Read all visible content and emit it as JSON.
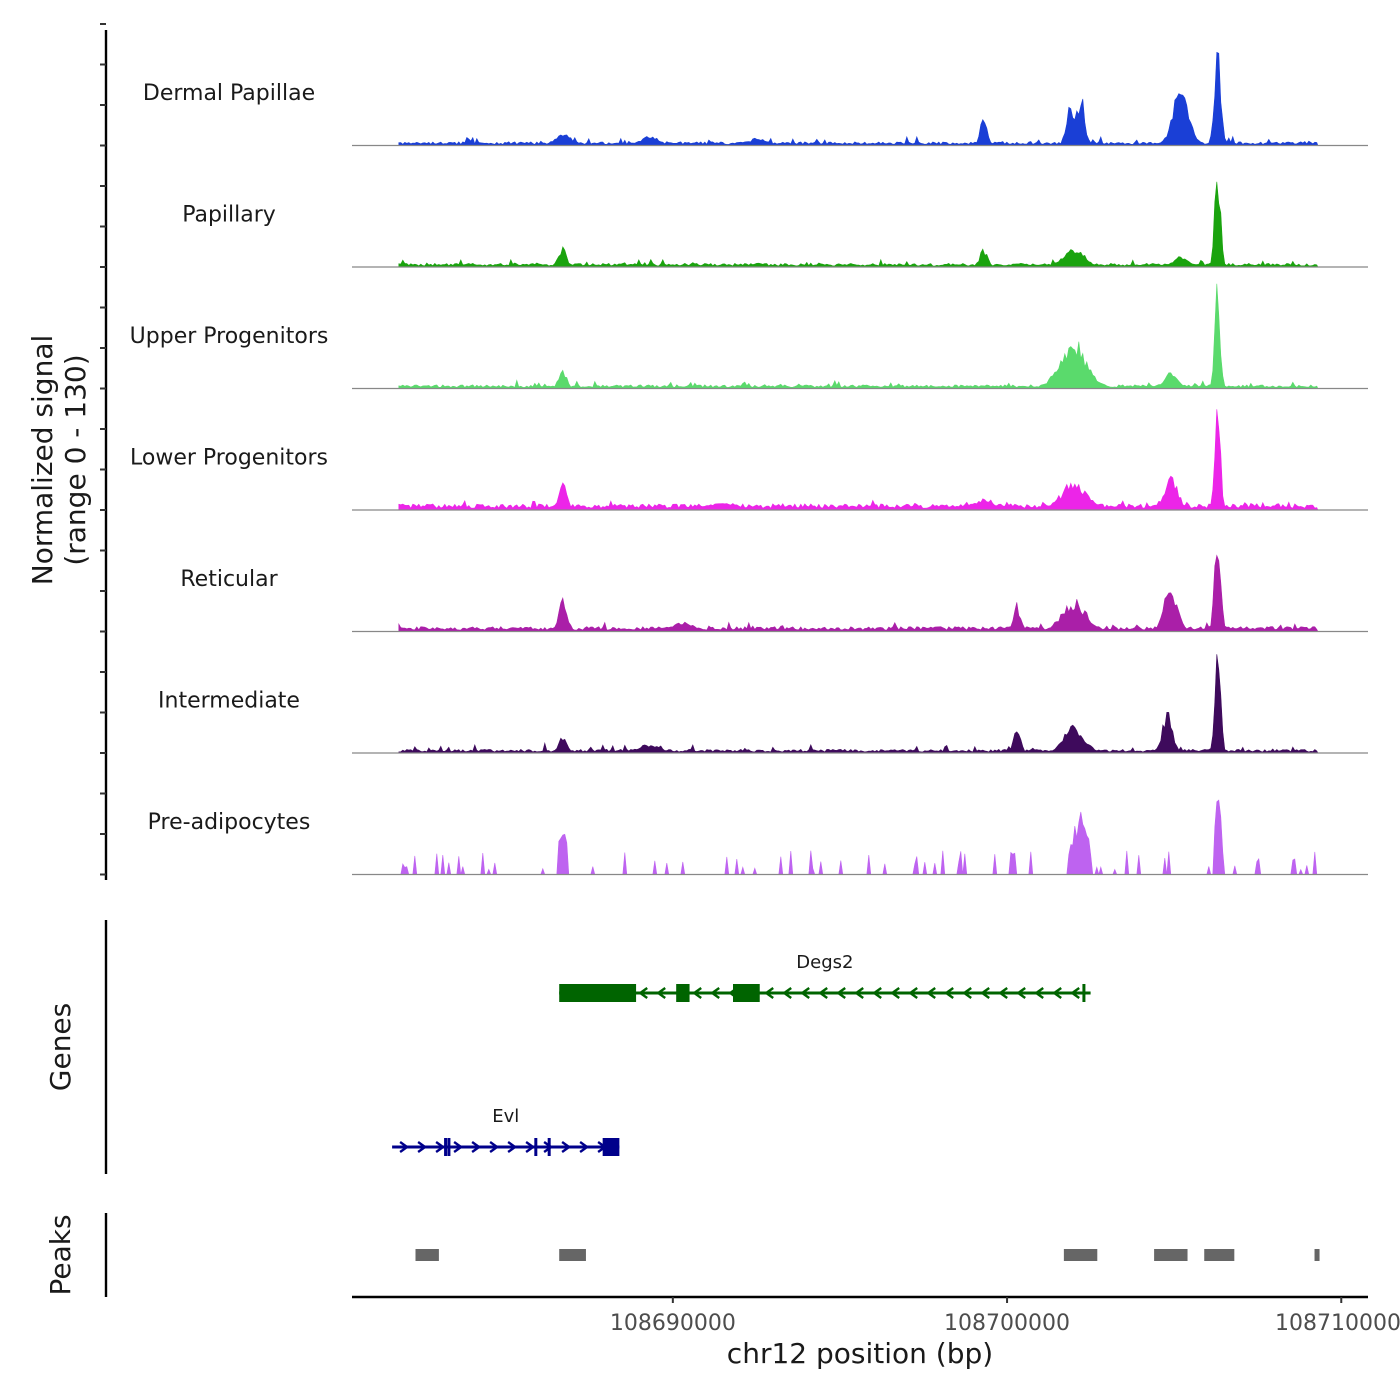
{
  "chart_data": {
    "type": "area",
    "title": "",
    "y_axis_title": [
      "Normalized signal",
      "(range 0 - 130)"
    ],
    "ylim": [
      0,
      130
    ],
    "xlabel": "chr12 position (bp)",
    "xlim": [
      108680400,
      108710800
    ],
    "x_ticks": [
      108690000,
      108700000,
      108710000
    ],
    "x_tick_labels": [
      "108690000",
      "108700000",
      "108710000"
    ],
    "signal_range": [
      108681800,
      108709300
    ],
    "colors": {
      "Dermal Papillae": "#1a3fd6",
      "Papillary": "#1aa30e",
      "Upper Progenitors": "#5ada6c",
      "Lower Progenitors": "#ec25e8",
      "Reticular": "#aa1fa8",
      "Intermediate": "#3e0a5c",
      "Pre-adipocytes": "#be63f0",
      "peaks": "#666666",
      "gene_minus": "#006400",
      "gene_plus": "#00008b"
    },
    "series": [
      {
        "name": "Dermal Papillae",
        "base": 3,
        "noise": 4,
        "sparse": false,
        "peaks": [
          [
            108686700,
            12,
            220
          ],
          [
            108689300,
            8,
            260
          ],
          [
            108692500,
            6,
            300
          ],
          [
            108699300,
            30,
            90
          ],
          [
            108701900,
            45,
            110
          ],
          [
            108702200,
            50,
            120
          ],
          [
            108705200,
            55,
            240
          ],
          [
            108706300,
            110,
            90
          ]
        ]
      },
      {
        "name": "Papillary",
        "base": 3,
        "noise": 3,
        "sparse": false,
        "peaks": [
          [
            108686700,
            18,
            110
          ],
          [
            108699300,
            18,
            110
          ],
          [
            108702000,
            18,
            300
          ],
          [
            108705200,
            10,
            200
          ],
          [
            108706300,
            105,
            80
          ]
        ]
      },
      {
        "name": "Upper Progenitors",
        "base": 3,
        "noise": 3,
        "sparse": false,
        "peaks": [
          [
            108686700,
            20,
            110
          ],
          [
            108702000,
            45,
            400
          ],
          [
            108704900,
            15,
            200
          ],
          [
            108706300,
            100,
            80
          ]
        ]
      },
      {
        "name": "Lower Progenitors",
        "base": 5,
        "noise": 3,
        "sparse": false,
        "peaks": [
          [
            108686700,
            25,
            120
          ],
          [
            108691500,
            6,
            500
          ],
          [
            108699300,
            10,
            300
          ],
          [
            108702000,
            28,
            350
          ],
          [
            108704900,
            32,
            200
          ],
          [
            108706300,
            105,
            80
          ]
        ]
      },
      {
        "name": "Reticular",
        "base": 4,
        "noise": 4,
        "sparse": false,
        "peaks": [
          [
            108686700,
            30,
            120
          ],
          [
            108690300,
            8,
            300
          ],
          [
            108700300,
            25,
            100
          ],
          [
            108702000,
            30,
            350
          ],
          [
            108704900,
            45,
            200
          ],
          [
            108706300,
            100,
            90
          ]
        ]
      },
      {
        "name": "Intermediate",
        "base": 3,
        "noise": 4,
        "sparse": false,
        "peaks": [
          [
            108686700,
            15,
            120
          ],
          [
            108689300,
            8,
            300
          ],
          [
            108700300,
            25,
            100
          ],
          [
            108702000,
            25,
            300
          ],
          [
            108704800,
            40,
            150
          ],
          [
            108706300,
            130,
            80
          ]
        ]
      },
      {
        "name": "Pre-adipocytes",
        "base": 0,
        "noise": 22,
        "sparse": true,
        "peaks": [
          [
            108686700,
            55,
            120
          ],
          [
            108702200,
            60,
            250
          ],
          [
            108706300,
            100,
            90
          ]
        ]
      }
    ],
    "genes_track_label": "Genes",
    "genes": [
      {
        "name": "Degs2",
        "strand": "-",
        "start": 108686600,
        "end": 108702500,
        "exons": [
          [
            108686600,
            108688900
          ],
          [
            108690100,
            108690500
          ],
          [
            108691800,
            108692600
          ]
        ],
        "ticks": [
          108702300
        ]
      },
      {
        "name": "Evl",
        "strand": "+",
        "start": 108681600,
        "end": 108688400,
        "exons": [
          [
            108687900,
            108688400
          ]
        ],
        "ticks": [
          108683200,
          108683300,
          108685900,
          108686300
        ]
      }
    ],
    "peaks_track_label": "Peaks",
    "peaks": [
      [
        108682300,
        108683000
      ],
      [
        108686600,
        108687400
      ],
      [
        108701700,
        108702700
      ],
      [
        108704400,
        108705400
      ],
      [
        108705900,
        108706800
      ],
      [
        108709200,
        108709350
      ]
    ]
  }
}
